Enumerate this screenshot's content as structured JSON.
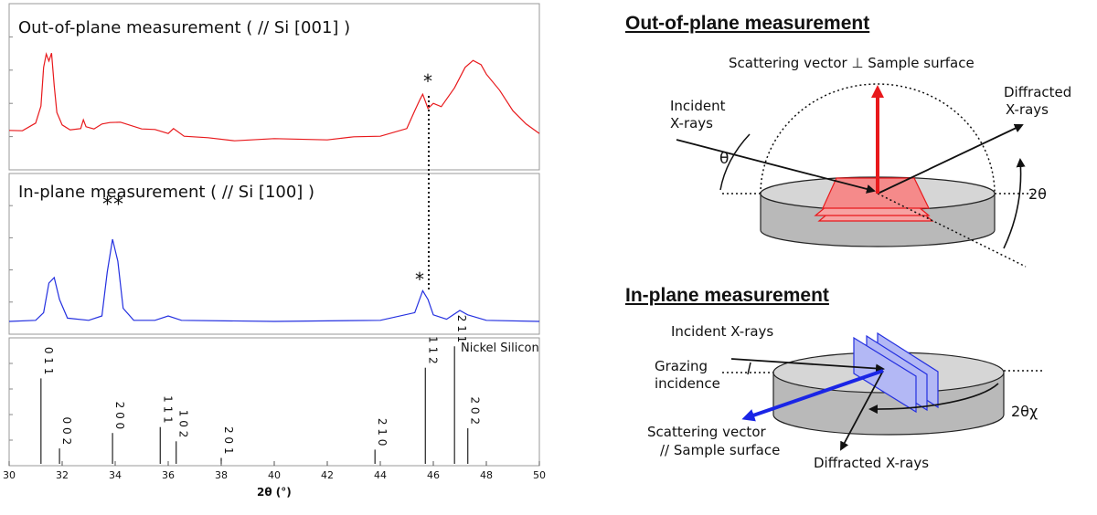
{
  "left": {
    "out_plane_title": "Out-of-plane measurement ( // Si [001] )",
    "in_plane_title": "In-plane measurement ( // Si [100] )",
    "reference_label": "Nickel Silicon",
    "xlabel": "2θ (°)",
    "star_single": "*",
    "star_double": "**"
  },
  "right": {
    "out_heading": "Out-of-plane measurement",
    "in_heading": "In-plane measurement",
    "scattering_perp": "Scattering vector ⊥ Sample surface",
    "incident_line1": "Incident",
    "incident_line2": "X-rays",
    "diffracted_line1": "Diffracted",
    "diffracted_line2": "X-rays",
    "theta": "θ",
    "two_theta": "2θ",
    "incident_xrays": "Incident X-rays",
    "grazing_line1": "Grazing",
    "grazing_line2": "incidence",
    "scattering_par_line1": "Scattering vector",
    "scattering_par_line2": "// Sample surface",
    "diffracted_xrays": "Diffracted X-rays",
    "two_theta_chi": "2θχ"
  },
  "colors": {
    "out_plane": "#e8191c",
    "in_plane": "#2430e0",
    "scatter_par": "#1a25e6"
  },
  "chart_data": [
    {
      "type": "line",
      "title": "Out-of-plane measurement ( // Si [001] )",
      "xlim": [
        30,
        50
      ],
      "series": [
        {
          "values_xy": [
            [
              30,
              0.06
            ],
            [
              30.5,
              0.08
            ],
            [
              31,
              0.14
            ],
            [
              31.2,
              0.35
            ],
            [
              31.3,
              0.75
            ],
            [
              31.4,
              0.92
            ],
            [
              31.5,
              0.82
            ],
            [
              31.6,
              0.93
            ],
            [
              31.7,
              0.55
            ],
            [
              31.8,
              0.28
            ],
            [
              32,
              0.12
            ],
            [
              32.3,
              0.09
            ],
            [
              32.7,
              0.08
            ],
            [
              32.8,
              0.2
            ],
            [
              32.9,
              0.1
            ],
            [
              33.2,
              0.1
            ],
            [
              33.5,
              0.13
            ],
            [
              33.8,
              0.17
            ],
            [
              34.2,
              0.15
            ],
            [
              35,
              0.1
            ],
            [
              35.5,
              0.07
            ],
            [
              36,
              0.05
            ],
            [
              36.2,
              0.08
            ],
            [
              36.6,
              0.02
            ],
            [
              37.5,
              -0.02
            ],
            [
              38.5,
              -0.03
            ],
            [
              40,
              -0.03
            ],
            [
              42,
              -0.02
            ],
            [
              43,
              -0.01
            ],
            [
              44,
              0.02
            ],
            [
              45,
              0.08
            ],
            [
              45.3,
              0.3
            ],
            [
              45.5,
              0.4
            ],
            [
              45.6,
              0.48
            ],
            [
              45.8,
              0.3
            ],
            [
              46,
              0.38
            ],
            [
              46.3,
              0.32
            ],
            [
              46.8,
              0.55
            ],
            [
              47.2,
              0.75
            ],
            [
              47.5,
              0.85
            ],
            [
              47.8,
              0.78
            ],
            [
              48,
              0.7
            ],
            [
              48.5,
              0.5
            ],
            [
              49,
              0.3
            ],
            [
              49.5,
              0.13
            ],
            [
              50,
              0.05
            ]
          ]
        }
      ],
      "annotations": [
        {
          "x": 45.7,
          "text": "*"
        }
      ]
    },
    {
      "type": "line",
      "title": "In-plane measurement ( // Si [100] )",
      "xlim": [
        30,
        50
      ],
      "series": [
        {
          "values_xy": [
            [
              30,
              0.0
            ],
            [
              31,
              0.01
            ],
            [
              31.3,
              0.08
            ],
            [
              31.5,
              0.35
            ],
            [
              31.7,
              0.4
            ],
            [
              31.9,
              0.2
            ],
            [
              32.2,
              0.03
            ],
            [
              33,
              0.01
            ],
            [
              33.5,
              0.05
            ],
            [
              33.7,
              0.45
            ],
            [
              33.9,
              0.75
            ],
            [
              34.1,
              0.55
            ],
            [
              34.3,
              0.12
            ],
            [
              34.7,
              0.01
            ],
            [
              35.5,
              0.01
            ],
            [
              36,
              0.05
            ],
            [
              36.5,
              0.01
            ],
            [
              40,
              0.0
            ],
            [
              44,
              0.01
            ],
            [
              45.3,
              0.08
            ],
            [
              45.6,
              0.28
            ],
            [
              45.8,
              0.2
            ],
            [
              46,
              0.06
            ],
            [
              46.5,
              0.02
            ],
            [
              47,
              0.1
            ],
            [
              47.3,
              0.06
            ],
            [
              48,
              0.01
            ],
            [
              50,
              0.0
            ]
          ]
        }
      ],
      "annotations": [
        {
          "x": 33.9,
          "text": "**"
        },
        {
          "x": 45.6,
          "text": "*"
        }
      ]
    },
    {
      "type": "bar",
      "title": "Nickel Silicon",
      "xlabel": "2θ (°)",
      "xlim": [
        30,
        50
      ],
      "x_ticks": [
        30,
        32,
        34,
        36,
        38,
        40,
        42,
        44,
        46,
        48,
        50
      ],
      "peaks": [
        {
          "x": 31.2,
          "label": "0 1 1",
          "value": 0.72
        },
        {
          "x": 31.9,
          "label": "0 0 2",
          "value": 0.13
        },
        {
          "x": 33.9,
          "label": "2 0 0",
          "value": 0.26
        },
        {
          "x": 35.7,
          "label": "1 1 1",
          "value": 0.31
        },
        {
          "x": 36.3,
          "label": "1 0 2",
          "value": 0.19
        },
        {
          "x": 38.0,
          "label": "2 0 1",
          "value": 0.05
        },
        {
          "x": 43.8,
          "label": "2 1 0",
          "value": 0.12
        },
        {
          "x": 45.7,
          "label": "1 1 2",
          "value": 0.81
        },
        {
          "x": 46.8,
          "label": "2 1 1",
          "value": 0.99
        },
        {
          "x": 47.3,
          "label": "2 0 2",
          "value": 0.3
        }
      ]
    }
  ]
}
